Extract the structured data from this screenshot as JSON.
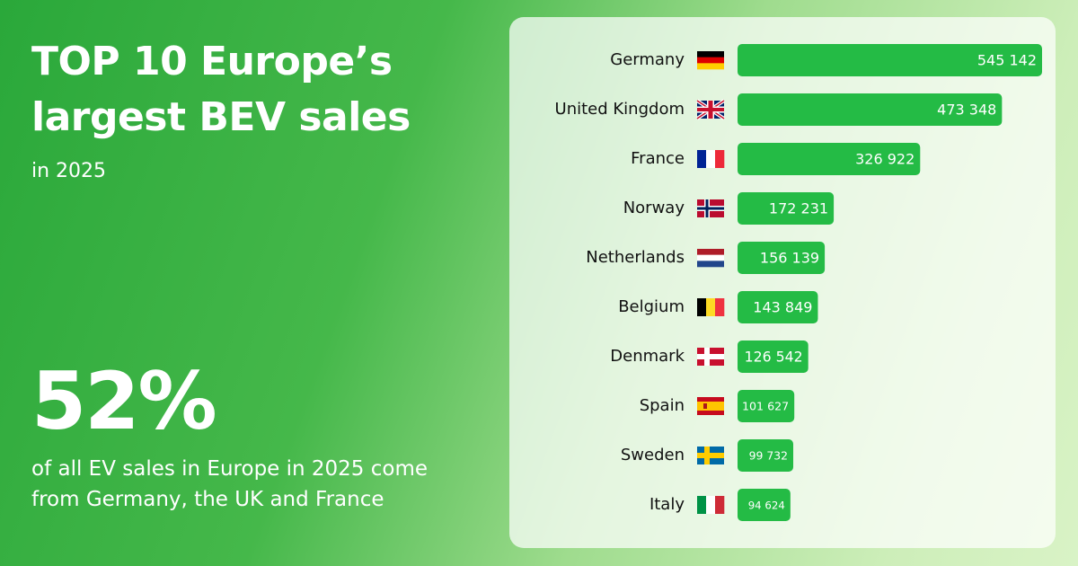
{
  "chart_data": {
    "type": "bar",
    "orientation": "horizontal",
    "title": "TOP 10 Europe’s largest BEV sales",
    "subtitle": "in 2025",
    "annotations": [
      "52%",
      "of all EV sales in Europe in 2025 come from Germany, the UK and France"
    ],
    "categories": [
      "Germany",
      "United Kingdom",
      "France",
      "Norway",
      "Netherlands",
      "Belgium",
      "Denmark",
      "Spain",
      "Sweden",
      "Italy"
    ],
    "values": [
      545142,
      473348,
      326922,
      172231,
      156139,
      143849,
      126542,
      101627,
      99732,
      94624
    ],
    "value_labels": [
      "545 142",
      "473 348",
      "326 922",
      "172 231",
      "156 139",
      "143 849",
      "126 542",
      "101 627",
      "99 732",
      "94 624"
    ],
    "color": "#24bb45"
  }
}
